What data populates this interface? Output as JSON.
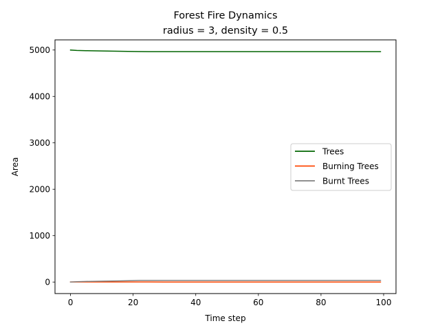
{
  "chart_data": {
    "type": "line",
    "title": "Forest Fire Dynamics",
    "subtitle": "radius = 3, density = 0.5",
    "xlabel": "Time step",
    "ylabel": "Area",
    "xlim": [
      -4.95,
      103.95
    ],
    "ylim": [
      -248.5,
      5218.5
    ],
    "xticks": [
      0,
      20,
      40,
      60,
      80,
      100
    ],
    "yticks": [
      0,
      1000,
      2000,
      3000,
      4000,
      5000
    ],
    "grid": false,
    "legend_position": "center-right",
    "series": [
      {
        "name": "Trees",
        "color": "#006400",
        "x": [
          0,
          2,
          5,
          10,
          15,
          20,
          22,
          25,
          30,
          40,
          60,
          80,
          99
        ],
        "y": [
          5000,
          4990,
          4985,
          4980,
          4975,
          4968,
          4966,
          4965,
          4965,
          4965,
          4965,
          4965,
          4965
        ]
      },
      {
        "name": "Burning Trees",
        "color": "#ff4500",
        "x": [
          0,
          5,
          10,
          15,
          20,
          25,
          30,
          40,
          60,
          80,
          99
        ],
        "y": [
          1,
          2,
          2,
          2,
          1,
          1,
          0,
          0,
          0,
          0,
          0
        ]
      },
      {
        "name": "Burnt Trees",
        "color": "#808080",
        "x": [
          0,
          2,
          5,
          10,
          15,
          20,
          22,
          25,
          30,
          40,
          60,
          80,
          99
        ],
        "y": [
          0,
          8,
          13,
          18,
          24,
          31,
          34,
          35,
          35,
          35,
          35,
          35,
          35
        ]
      }
    ]
  }
}
